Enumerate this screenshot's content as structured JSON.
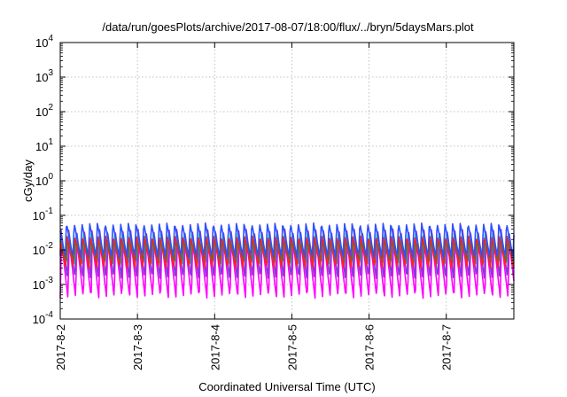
{
  "chart_data": {
    "type": "line",
    "title": "/data/run/goesPlots/archive/2017-08-07/18:00/flux/../bryn/5daysMars.plot",
    "xlabel": "Coordinated Universal Time (UTC)",
    "ylabel": "cGy/day",
    "yscale": "log",
    "ylim": [
      0.0001,
      10000
    ],
    "xlim": [
      "2017-08-02",
      "2017-08-07 21:00"
    ],
    "x_tick_labels": [
      "2017-8-2",
      "2017-8-3",
      "2017-8-4",
      "2017-8-5",
      "2017-8-6",
      "2017-8-7"
    ],
    "y_tick_labels": [
      {
        "base": "10",
        "exp": "-4"
      },
      {
        "base": "10",
        "exp": "-3"
      },
      {
        "base": "10",
        "exp": "-2"
      },
      {
        "base": "10",
        "exp": "-1"
      },
      {
        "base": "10",
        "exp": "0"
      },
      {
        "base": "10",
        "exp": "1"
      },
      {
        "base": "10",
        "exp": "2"
      },
      {
        "base": "10",
        "exp": "3"
      },
      {
        "base": "10",
        "exp": "4"
      }
    ],
    "grid": true,
    "oscillation_period_hours": 2.4,
    "series": [
      {
        "color": "#ff00ff",
        "min": 0.0004,
        "max": 0.02
      },
      {
        "color": "#7a3fd6",
        "min": 0.0015,
        "max": 0.04
      },
      {
        "color": "#00c8c8",
        "min": 0.004,
        "max": 0.03
      },
      {
        "color": "#00a000",
        "min": 0.005,
        "max": 0.02
      },
      {
        "color": "#ff2020",
        "min": 0.003,
        "max": 0.025
      },
      {
        "color": "#3050ff",
        "min": 0.006,
        "max": 0.06
      }
    ]
  }
}
